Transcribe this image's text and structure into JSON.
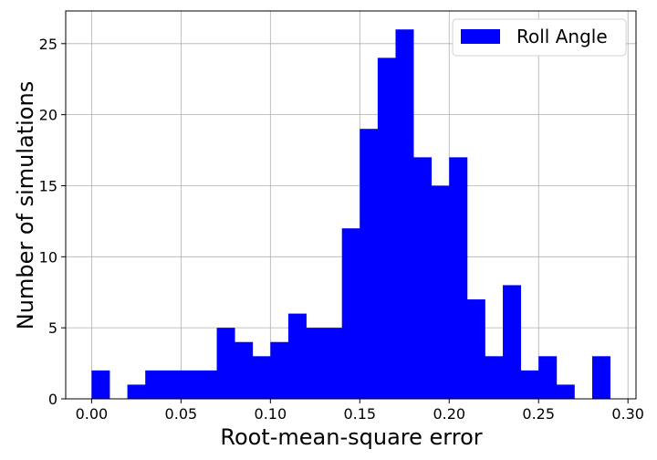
{
  "chart_data": {
    "type": "bar",
    "subtype": "histogram",
    "bin_width": 0.01,
    "bin_starts": [
      0.0,
      0.01,
      0.02,
      0.03,
      0.04,
      0.05,
      0.06,
      0.07,
      0.08,
      0.09,
      0.1,
      0.11,
      0.12,
      0.13,
      0.14,
      0.15,
      0.16,
      0.17,
      0.18,
      0.19,
      0.2,
      0.21,
      0.22,
      0.23,
      0.24,
      0.25,
      0.26,
      0.27,
      0.28
    ],
    "counts": [
      2,
      0,
      1,
      2,
      2,
      2,
      2,
      5,
      4,
      3,
      4,
      6,
      5,
      5,
      12,
      19,
      24,
      26,
      17,
      15,
      17,
      7,
      3,
      8,
      2,
      3,
      1,
      0,
      3
    ],
    "bar_color": "#0000ff",
    "series": [
      {
        "name": "Roll Angle",
        "color": "#0000ff"
      }
    ],
    "xlabel": "Root-mean-square error",
    "ylabel": "Number of simulations",
    "xlim": [
      -0.0145,
      0.3045
    ],
    "ylim": [
      0,
      27.3
    ],
    "xticks": [
      0.0,
      0.05,
      0.1,
      0.15,
      0.2,
      0.25,
      0.3
    ],
    "xtick_labels": [
      "0.00",
      "0.05",
      "0.10",
      "0.15",
      "0.20",
      "0.25",
      "0.30"
    ],
    "yticks": [
      0,
      5,
      10,
      15,
      20,
      25
    ],
    "ytick_labels": [
      "0",
      "5",
      "10",
      "15",
      "20",
      "25"
    ],
    "grid": true,
    "legend_position": "top-right"
  }
}
